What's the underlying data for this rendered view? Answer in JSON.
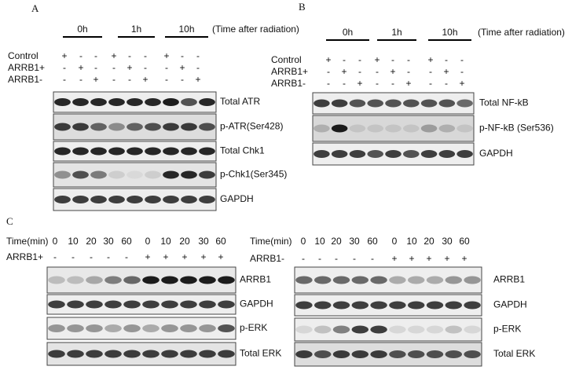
{
  "panels": [
    {
      "label": "A",
      "time_points": [
        "0h",
        "1h",
        "10h"
      ],
      "time_note": "(Time after radiation)",
      "conditions": [
        {
          "name": "Control",
          "signs": [
            "+",
            "-",
            "-",
            "+",
            "-",
            "-",
            "+",
            "-",
            "-"
          ]
        },
        {
          "name": "ARRB1+",
          "signs": [
            "-",
            "+",
            "-",
            "-",
            "+",
            "-",
            "-",
            "+",
            "-"
          ]
        },
        {
          "name": "ARRB1-",
          "signs": [
            "-",
            "-",
            "+",
            "-",
            "-",
            "+",
            "-",
            "-",
            "+"
          ]
        }
      ],
      "blots": [
        "Total ATR",
        "p-ATR(Ser428)",
        "Total Chk1",
        "p-Chk1(Ser345)",
        "GAPDH"
      ]
    },
    {
      "label": "B",
      "time_points": [
        "0h",
        "1h",
        "10h"
      ],
      "time_note": "(Time after radiation)",
      "conditions": [
        {
          "name": "Control",
          "signs": [
            "+",
            "-",
            "-",
            "+",
            "-",
            "-",
            "+",
            "-",
            "-"
          ]
        },
        {
          "name": "ARRB1+",
          "signs": [
            "-",
            "+",
            "-",
            "-",
            "+",
            "-",
            "-",
            "+",
            "-"
          ]
        },
        {
          "name": "ARRB1-",
          "signs": [
            "-",
            "-",
            "+",
            "-",
            "-",
            "+",
            "-",
            "-",
            "+"
          ]
        }
      ],
      "blots": [
        "Total NF-kB",
        "p-NF-kB (Ser536)",
        "GAPDH"
      ]
    },
    {
      "label": "C",
      "time_label": "Time(min)",
      "times": [
        0,
        10,
        20,
        30,
        60,
        0,
        10,
        20,
        30,
        60
      ],
      "conditions": [
        {
          "name": "ARRB1+",
          "signs": [
            "-",
            "-",
            "-",
            "-",
            "-",
            "+",
            "+",
            "+",
            "+",
            "+"
          ]
        }
      ],
      "blots": [
        "ARRB1",
        "GAPDH",
        "p-ERK",
        "Total ERK"
      ]
    },
    {
      "time_label": "Time(min)",
      "times": [
        0,
        10,
        20,
        30,
        60,
        0,
        10,
        20,
        30,
        60
      ],
      "conditions": [
        {
          "name": "ARRB1-",
          "signs": [
            "-",
            "-",
            "-",
            "-",
            "-",
            "+",
            "+",
            "+",
            "+",
            "+"
          ]
        }
      ],
      "blots": [
        "ARRB1",
        "GAPDH",
        "p-ERK",
        "Total ERK"
      ]
    }
  ]
}
